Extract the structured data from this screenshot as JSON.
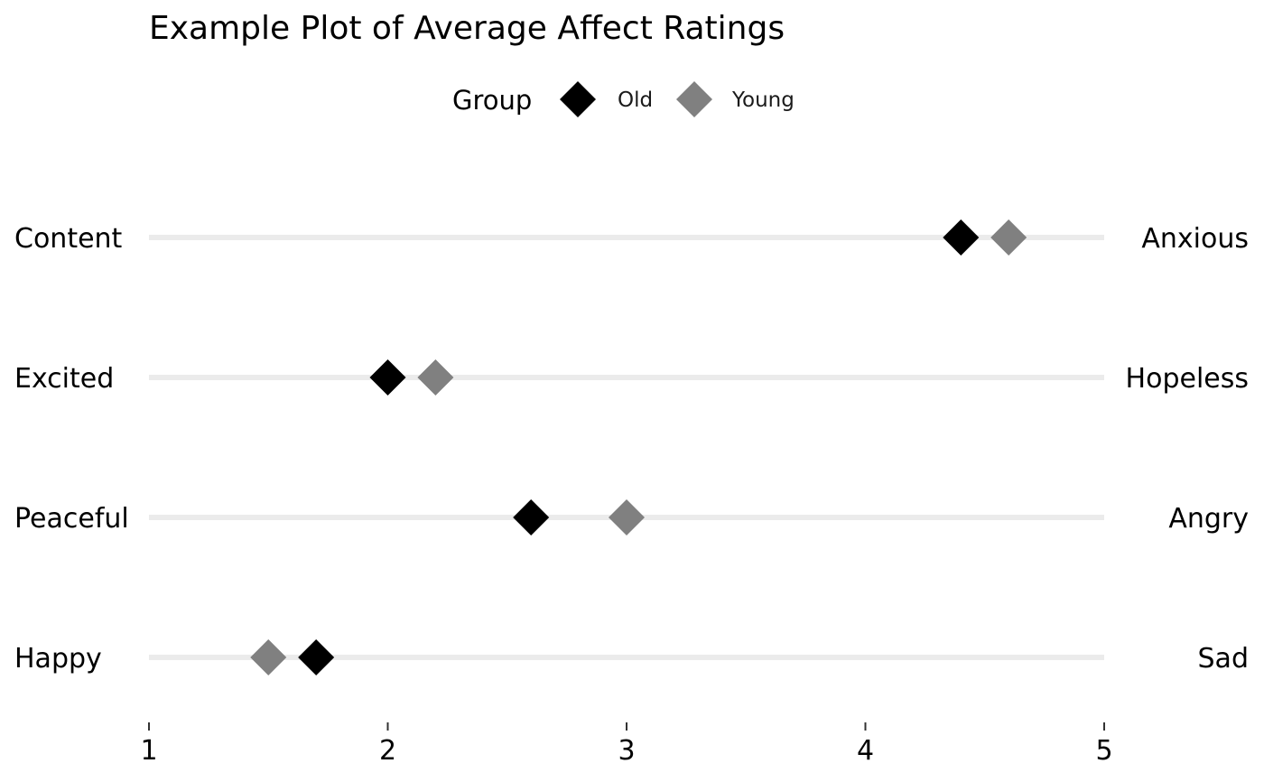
{
  "chart_data": {
    "type": "scatter",
    "title": "Example Plot of Average Affect Ratings",
    "legend": {
      "title": "Group",
      "position": "top"
    },
    "xlim": [
      1,
      5
    ],
    "x_ticks": [
      "1",
      "2",
      "3",
      "4",
      "5"
    ],
    "grid": false,
    "marker": "diamond",
    "rows": [
      {
        "left_label": "Content",
        "right_label": "Anxious"
      },
      {
        "left_label": "Excited",
        "right_label": "Hopeless"
      },
      {
        "left_label": "Peaceful",
        "right_label": "Angry"
      },
      {
        "left_label": "Happy",
        "right_label": "Sad"
      }
    ],
    "series": [
      {
        "name": "Old",
        "color": "#000000",
        "values": [
          4.4,
          2.0,
          2.6,
          1.7
        ]
      },
      {
        "name": "Young",
        "color": "#808080",
        "values": [
          4.6,
          2.2,
          3.0,
          1.5
        ]
      }
    ],
    "track_color": "#ebebeb"
  }
}
